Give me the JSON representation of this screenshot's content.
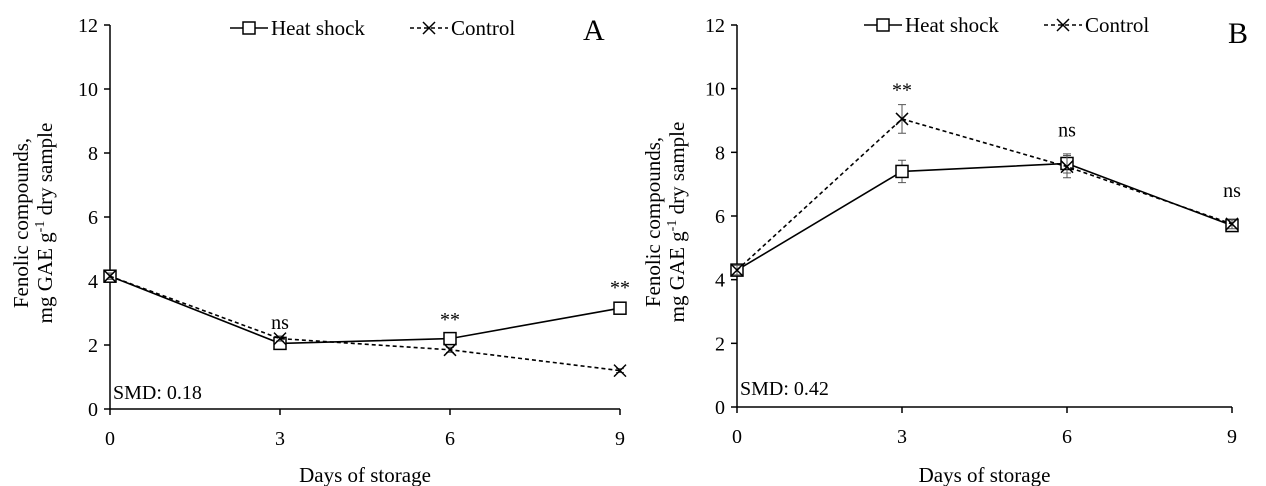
{
  "chart_data": [
    {
      "type": "line",
      "panel": "A",
      "x": [
        0,
        3,
        6,
        9
      ],
      "xticks": [
        "0",
        "3",
        "6",
        "9"
      ],
      "yticks": [
        "0",
        "2",
        "4",
        "6",
        "8",
        "10",
        "12"
      ],
      "xlim": [
        0,
        9
      ],
      "ylim": [
        0,
        12
      ],
      "xlabel": "Days of storage",
      "ylabel_line1": "Fenolic compounds,",
      "ylabel_line2_pre": "mg GAE g",
      "ylabel_line2_sup": "-1",
      "ylabel_line2_post": " dry sample",
      "grid": false,
      "legend_position": "top",
      "series": [
        {
          "name": "Heat shock",
          "values": [
            4.15,
            2.05,
            2.2,
            3.15
          ],
          "errors": [
            0.1,
            0.1,
            0.12,
            0.18
          ],
          "marker": "square",
          "line": "solid"
        },
        {
          "name": "Control",
          "values": [
            4.15,
            2.2,
            1.85,
            1.2
          ],
          "errors": [
            0.1,
            0.08,
            0.08,
            0.06
          ],
          "marker": "x",
          "line": "dashed"
        }
      ],
      "annotations": [
        {
          "x": 3,
          "y": 2.5,
          "text": "ns"
        },
        {
          "x": 6,
          "y": 2.6,
          "text": "**"
        },
        {
          "x": 9,
          "y": 3.6,
          "text": "**"
        }
      ],
      "smd": "SMD: 0.18"
    },
    {
      "type": "line",
      "panel": "B",
      "x": [
        0,
        3,
        6,
        9
      ],
      "xticks": [
        "0",
        "3",
        "6",
        "9"
      ],
      "yticks": [
        "0",
        "2",
        "4",
        "6",
        "8",
        "10",
        "12"
      ],
      "xlim": [
        0,
        9
      ],
      "ylim": [
        0,
        12
      ],
      "xlabel": "Days of storage",
      "ylabel_line1": "Fenolic compounds,",
      "ylabel_line2_pre": "mg GAE g",
      "ylabel_line2_sup": "-1",
      "ylabel_line2_post": " dry sample",
      "grid": false,
      "legend_position": "top",
      "series": [
        {
          "name": "Heat shock",
          "values": [
            4.3,
            7.4,
            7.65,
            5.7
          ],
          "errors": [
            0.15,
            0.35,
            0.3,
            0.15
          ],
          "marker": "square",
          "line": "solid"
        },
        {
          "name": "Control",
          "values": [
            4.3,
            9.05,
            7.55,
            5.75
          ],
          "errors": [
            0.15,
            0.45,
            0.35,
            0.15
          ],
          "marker": "x",
          "line": "dashed"
        }
      ],
      "annotations": [
        {
          "x": 3,
          "y": 9.75,
          "text": "**"
        },
        {
          "x": 6,
          "y": 8.5,
          "text": "ns"
        },
        {
          "x": 9,
          "y": 6.6,
          "text": "ns"
        }
      ],
      "smd": "SMD: 0.42"
    }
  ]
}
